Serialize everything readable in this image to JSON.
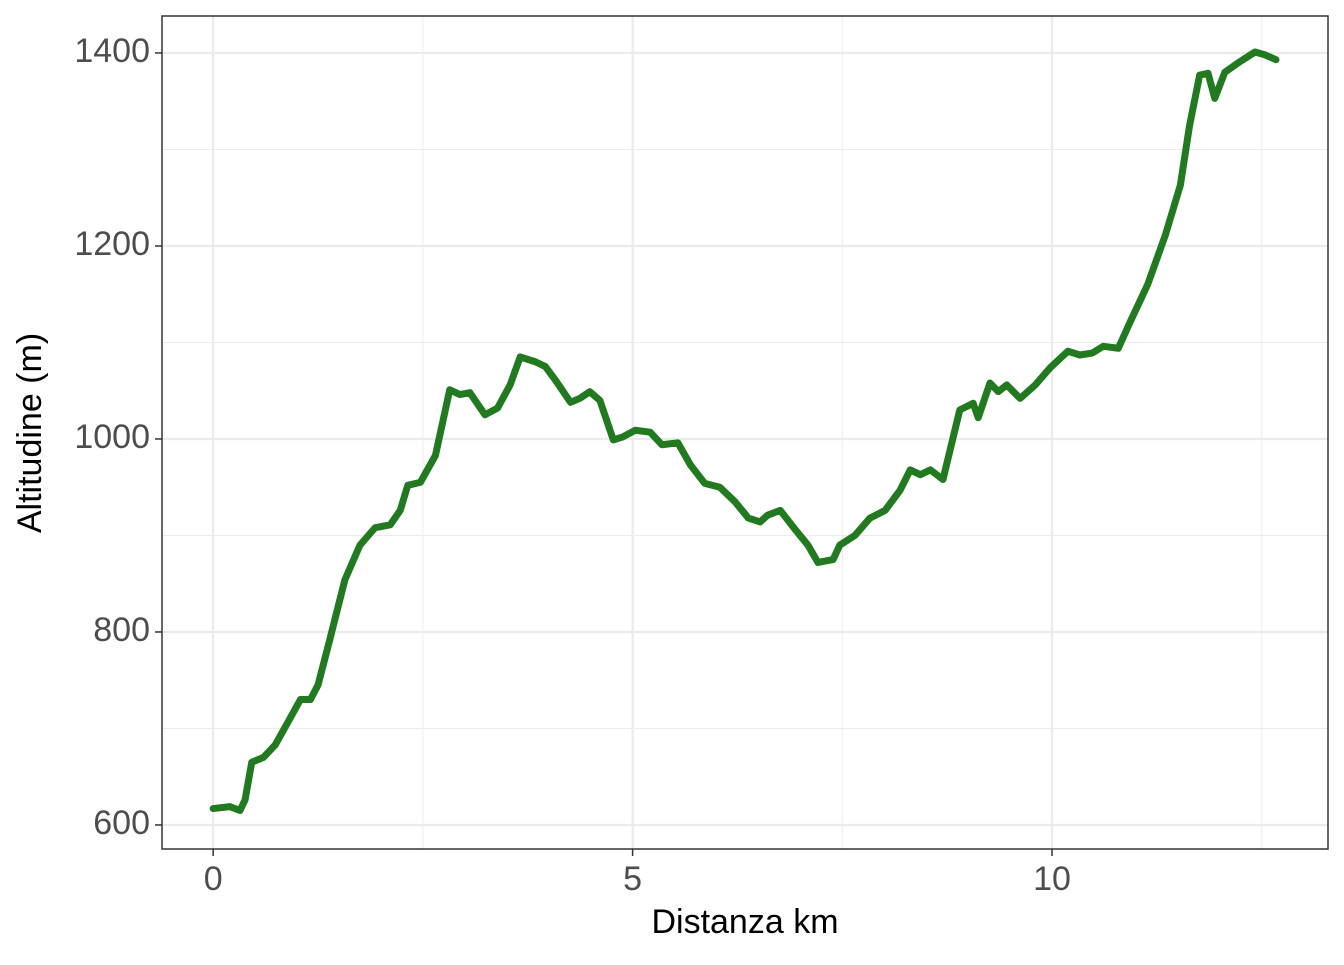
{
  "chart_data": {
    "type": "line",
    "x_label": "Distanza km",
    "y_label": "Altitudine (m)",
    "x": [
      0,
      0.2,
      0.32,
      0.38,
      0.46,
      0.6,
      0.74,
      0.92,
      1.04,
      1.16,
      1.25,
      1.39,
      1.57,
      1.75,
      1.93,
      2.11,
      2.23,
      2.32,
      2.47,
      2.65,
      2.82,
      2.94,
      3.06,
      3.24,
      3.39,
      3.54,
      3.66,
      3.84,
      3.96,
      4.08,
      4.26,
      4.37,
      4.49,
      4.61,
      4.77,
      4.88,
      5.03,
      5.21,
      5.35,
      5.54,
      5.69,
      5.86,
      6.04,
      6.22,
      6.38,
      6.52,
      6.61,
      6.76,
      6.94,
      7.09,
      7.21,
      7.39,
      7.47,
      7.65,
      7.83,
      8.01,
      8.19,
      8.31,
      8.43,
      8.55,
      8.7,
      8.9,
      9.06,
      9.12,
      9.26,
      9.36,
      9.46,
      9.62,
      9.8,
      9.98,
      10.19,
      10.33,
      10.48,
      10.61,
      10.79,
      10.93,
      11.14,
      11.35,
      11.53,
      11.64,
      11.76,
      11.86,
      11.94,
      12.06,
      12.24,
      12.42,
      12.54,
      12.67
    ],
    "series": [
      {
        "color": "#217a1f",
        "values": [
          617,
          619,
          615,
          626,
          665,
          670,
          683,
          711,
          730,
          730,
          745,
          792,
          854,
          890,
          908,
          911,
          926,
          952,
          955,
          983,
          1051,
          1046,
          1048,
          1025,
          1032,
          1056,
          1085,
          1080,
          1075,
          1061,
          1038,
          1042,
          1049,
          1040,
          999,
          1002,
          1009,
          1007,
          994,
          996,
          973,
          954,
          950,
          935,
          918,
          914,
          921,
          926,
          906,
          890,
          872,
          875,
          890,
          900,
          918,
          926,
          947,
          968,
          963,
          968,
          958,
          1030,
          1037,
          1022,
          1058,
          1049,
          1056,
          1042,
          1056,
          1074,
          1091,
          1087,
          1089,
          1096,
          1094,
          1121,
          1160,
          1211,
          1263,
          1325,
          1377,
          1379,
          1353,
          1380,
          1391,
          1401,
          1398,
          1393
        ]
      }
    ],
    "xlim": [
      -0.61,
      13.29
    ],
    "ylim": [
      575.1,
      1438.3
    ],
    "xticks": [
      0,
      5,
      10
    ],
    "yticks": [
      600,
      800,
      1000,
      1200,
      1400
    ],
    "x_minor_ticks": [
      2.5,
      7.5,
      12.5
    ],
    "y_minor_ticks": [
      700,
      900,
      1100,
      1300
    ],
    "grid": true
  }
}
